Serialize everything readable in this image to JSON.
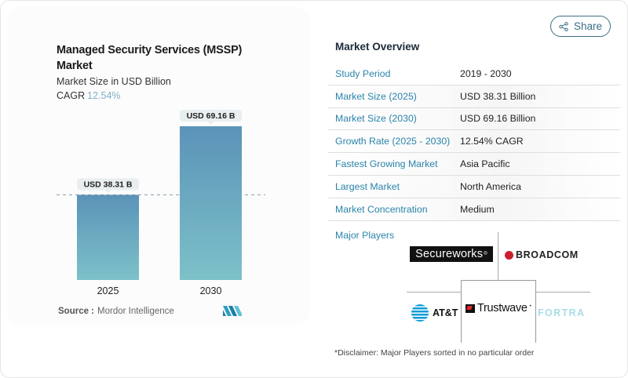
{
  "share": {
    "label": "Share",
    "icon": "share-icon"
  },
  "chart_card": {
    "title": "Managed Security Services (MSSP) Market",
    "subtitle": "Market Size in USD Billion",
    "cagr_label": "CAGR",
    "cagr_value": "12.54%",
    "source_label": "Source :",
    "source_value": "Mordor Intelligence",
    "logo": "mordor-intelligence-logo"
  },
  "chart_data": {
    "type": "bar",
    "title": "Managed Security Services (MSSP) Market",
    "subtitle": "Market Size in USD Billion",
    "categories": [
      "2025",
      "2030"
    ],
    "values": [
      38.31,
      69.16
    ],
    "data_labels": [
      "USD 38.31 B",
      "USD 69.16 B"
    ],
    "xlabel": "",
    "ylabel": "Market Size in USD Billion",
    "ylim": [
      0,
      69.16
    ],
    "grid": false,
    "reference_line": {
      "value": 38.31,
      "style": "dashed"
    },
    "bar_color_top": "#5b93b8",
    "bar_color_bottom": "#7dc1c9"
  },
  "overview": {
    "title": "Market Overview",
    "rows": [
      {
        "key": "Study Period",
        "value": "2019 - 2030"
      },
      {
        "key": "Market Size (2025)",
        "value": "USD 38.31 Billion"
      },
      {
        "key": "Market Size (2030)",
        "value": "USD 69.16 Billion"
      },
      {
        "key": "Growth Rate (2025 - 2030)",
        "value": "12.54% CAGR"
      },
      {
        "key": "Fastest Growing Market",
        "value": "Asia Pacific"
      },
      {
        "key": "Largest Market",
        "value": "North America"
      },
      {
        "key": "Market Concentration",
        "value": "Medium"
      }
    ],
    "players_label": "Major Players",
    "players": [
      "Secureworks",
      "BROADCOM",
      "AT&T",
      "Trustwave",
      "FORTRA"
    ]
  },
  "disclaimer": "*Disclaimer: Major Players sorted in no particular order",
  "colors": {
    "accent": "#2a84ab",
    "share_border": "#3b6e84",
    "cagr": "#7fb0c4"
  }
}
